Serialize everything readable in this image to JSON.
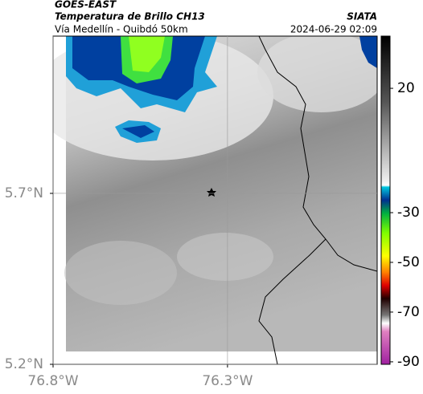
{
  "header": {
    "title": "GOES-EAST",
    "subtitle": "Temperatura de Brillo CH13",
    "region": "Vía Medellín - Quibdó 50km",
    "source": "SIATA",
    "datetime": "2024-06-29 02:09"
  },
  "map": {
    "xlim": [
      -76.8,
      -75.871
    ],
    "xticks": [
      {
        "value": -76.8,
        "label": "76.8°W"
      },
      {
        "value": -76.3,
        "label": "76.3°W"
      }
    ],
    "ylim": [
      5.2,
      6.16
    ],
    "yticks": [
      {
        "value": 5.7,
        "label": "5.7°N"
      },
      {
        "value": 5.2,
        "label": "5.2°N"
      }
    ],
    "grid": true
  },
  "colorbar": {
    "lim": [
      -91,
      41
    ],
    "ticks": [
      20,
      -30,
      -50,
      -70,
      -90
    ]
  }
}
